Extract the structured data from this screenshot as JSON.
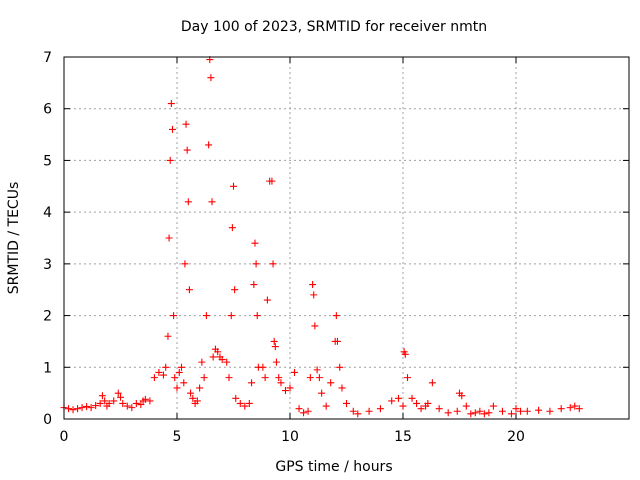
{
  "chart_data": {
    "type": "scatter",
    "title": "Day 100 of 2023, SRMTID for receiver nmtn",
    "xlabel": "GPS time / hours",
    "ylabel": "SRMTID / TECUs",
    "xlim": [
      0,
      25
    ],
    "ylim": [
      0,
      7
    ],
    "xticks": [
      0,
      5,
      10,
      15,
      20
    ],
    "yticks": [
      0,
      1,
      2,
      3,
      4,
      5,
      6,
      7
    ],
    "grid": true,
    "marker": "+",
    "marker_color": "#ff0000",
    "series": [
      {
        "name": "SRMTID",
        "x": [
          0.0,
          0.2,
          0.4,
          0.6,
          0.8,
          1.0,
          1.2,
          1.4,
          1.6,
          1.7,
          1.8,
          1.9,
          2.0,
          2.2,
          2.4,
          2.5,
          2.6,
          2.8,
          3.0,
          3.2,
          3.4,
          3.5,
          3.6,
          3.8,
          4.0,
          4.2,
          4.4,
          4.5,
          4.6,
          4.65,
          4.7,
          4.75,
          4.8,
          4.85,
          4.9,
          5.0,
          5.1,
          5.2,
          5.3,
          5.35,
          5.4,
          5.45,
          5.5,
          5.55,
          5.6,
          5.7,
          5.8,
          5.9,
          6.0,
          6.1,
          6.2,
          6.3,
          6.4,
          6.45,
          6.5,
          6.55,
          6.6,
          6.7,
          6.8,
          6.9,
          7.0,
          7.2,
          7.3,
          7.4,
          7.45,
          7.5,
          7.55,
          7.6,
          7.8,
          8.0,
          8.2,
          8.3,
          8.4,
          8.45,
          8.5,
          8.55,
          8.6,
          8.8,
          8.9,
          9.0,
          9.1,
          9.2,
          9.25,
          9.3,
          9.35,
          9.4,
          9.5,
          9.6,
          9.8,
          10.0,
          10.2,
          10.4,
          10.6,
          10.8,
          10.9,
          11.0,
          11.05,
          11.1,
          11.2,
          11.3,
          11.4,
          11.6,
          11.8,
          12.0,
          12.05,
          12.1,
          12.2,
          12.3,
          12.5,
          12.8,
          13.0,
          13.5,
          14.0,
          14.5,
          14.8,
          15.0,
          15.05,
          15.1,
          15.2,
          15.4,
          15.6,
          15.8,
          16.0,
          16.1,
          16.3,
          16.6,
          17.0,
          17.4,
          17.5,
          17.6,
          17.8,
          18.0,
          18.2,
          18.4,
          18.6,
          18.8,
          19.0,
          19.4,
          19.8,
          20.0,
          20.2,
          20.5,
          21.0,
          21.5,
          22.0,
          22.4,
          22.6,
          22.8
        ],
        "y": [
          0.22,
          0.2,
          0.18,
          0.2,
          0.22,
          0.24,
          0.22,
          0.26,
          0.3,
          0.45,
          0.35,
          0.25,
          0.3,
          0.35,
          0.5,
          0.42,
          0.3,
          0.25,
          0.22,
          0.3,
          0.28,
          0.35,
          0.38,
          0.35,
          0.8,
          0.9,
          0.85,
          1.0,
          1.6,
          3.5,
          5.0,
          6.1,
          5.6,
          2.0,
          0.8,
          0.6,
          0.9,
          1.0,
          0.7,
          3.0,
          5.7,
          5.2,
          4.2,
          2.5,
          0.5,
          0.4,
          0.3,
          0.35,
          0.6,
          1.1,
          0.8,
          2.0,
          5.3,
          6.95,
          6.6,
          4.2,
          1.2,
          1.35,
          1.3,
          1.2,
          1.15,
          1.1,
          0.8,
          2.0,
          3.7,
          4.5,
          2.5,
          0.4,
          0.3,
          0.25,
          0.3,
          0.7,
          2.6,
          3.4,
          3.0,
          2.0,
          1.0,
          1.0,
          0.8,
          2.3,
          4.6,
          4.6,
          3.0,
          1.5,
          1.4,
          1.1,
          0.8,
          0.7,
          0.55,
          0.6,
          0.9,
          0.2,
          0.12,
          0.15,
          0.8,
          2.6,
          2.4,
          1.8,
          0.95,
          0.8,
          0.5,
          0.25,
          0.7,
          1.5,
          2.0,
          1.5,
          1.0,
          0.6,
          0.3,
          0.15,
          0.1,
          0.15,
          0.2,
          0.35,
          0.4,
          0.25,
          1.3,
          1.25,
          0.8,
          0.4,
          0.3,
          0.2,
          0.25,
          0.3,
          0.7,
          0.2,
          0.12,
          0.15,
          0.5,
          0.45,
          0.25,
          0.1,
          0.12,
          0.15,
          0.1,
          0.12,
          0.25,
          0.15,
          0.1,
          0.2,
          0.15,
          0.15,
          0.17,
          0.15,
          0.2,
          0.22,
          0.25,
          0.2
        ]
      }
    ]
  }
}
